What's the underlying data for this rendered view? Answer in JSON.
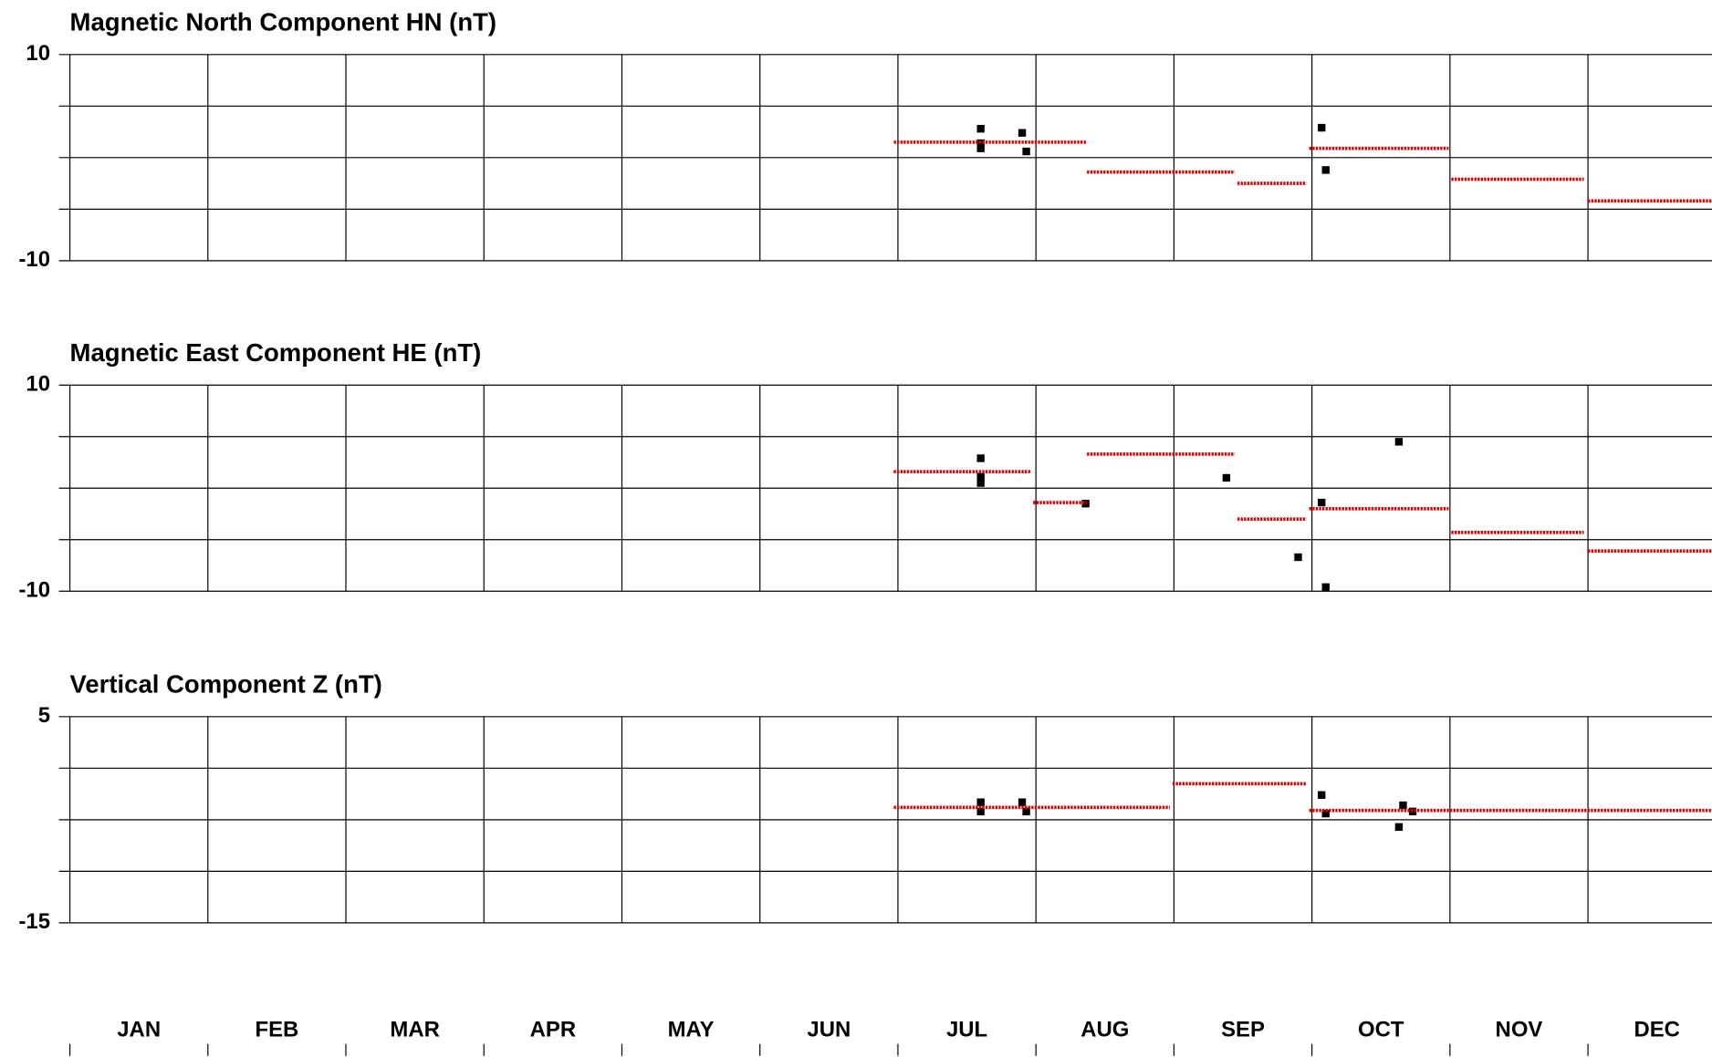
{
  "chart_data": [
    {
      "type": "scatter",
      "title": "Magnetic North Component HN (nT)",
      "xlim": [
        0,
        12
      ],
      "ylim": [
        -10,
        10
      ],
      "yticks": [
        10,
        {
          "value": 5,
          "label": null
        },
        {
          "value": 0,
          "label": null
        },
        {
          "value": -5,
          "label": null
        },
        -10
      ],
      "series": [
        {
          "color": "#000000",
          "x": [
            6.6,
            6.6,
            6.6,
            6.9,
            6.93,
            9.07,
            9.1
          ],
          "values": [
            2.8,
            1.4,
            0.9,
            2.4,
            0.6,
            2.9,
            -1.2
          ]
        },
        {
          "color": "#e00000",
          "x_start": [
            5.97,
            7.37,
            8.46,
            8.98,
            10.01,
            11.0
          ],
          "x_end": [
            7.37,
            8.44,
            8.96,
            9.99,
            10.97,
            12
          ],
          "values": [
            1.5,
            -1.4,
            -2.5,
            0.9,
            -2.1,
            -4.2
          ]
        }
      ]
    },
    {
      "type": "scatter",
      "title": "Magnetic East Component HE (nT)",
      "xlim": [
        0,
        12
      ],
      "ylim": [
        -10,
        10
      ],
      "yticks": [
        10,
        {
          "value": 5,
          "label": null
        },
        {
          "value": 0,
          "label": null
        },
        {
          "value": -5,
          "label": null
        },
        -10
      ],
      "series": [
        {
          "color": "#000000",
          "x": [
            6.6,
            6.6,
            6.6,
            7.36,
            8.38,
            8.9,
            9.07,
            9.1,
            9.63
          ],
          "values": [
            2.9,
            1.1,
            0.5,
            -1.5,
            1.0,
            -6.7,
            -1.4,
            -9.6,
            4.5
          ]
        },
        {
          "color": "#e00000",
          "x_start": [
            5.97,
            6.98,
            7.37,
            8.46,
            8.98,
            10.01,
            11.0
          ],
          "x_end": [
            6.96,
            7.37,
            8.44,
            8.96,
            9.99,
            10.97,
            12
          ],
          "values": [
            1.6,
            -1.4,
            3.3,
            -3.0,
            -2.0,
            -4.3,
            -6.1
          ]
        }
      ]
    },
    {
      "type": "scatter",
      "title": "Vertical Component Z (nT)",
      "xlim": [
        0,
        12
      ],
      "ylim": [
        -15,
        5
      ],
      "yticks": [
        5,
        {
          "value": 0,
          "label": null
        },
        {
          "value": -5,
          "label": null
        },
        {
          "value": -10,
          "label": null
        },
        -15
      ],
      "categories": [
        "JAN",
        "FEB",
        "MAR",
        "APR",
        "MAY",
        "JUN",
        "JUL",
        "AUG",
        "SEP",
        "OCT",
        "NOV",
        "DEC"
      ],
      "series": [
        {
          "color": "#000000",
          "x": [
            6.6,
            6.6,
            6.9,
            6.93,
            9.07,
            9.1,
            9.66,
            9.63,
            9.73
          ],
          "values": [
            -3.3,
            -4.2,
            -3.3,
            -4.2,
            -2.6,
            -4.4,
            -3.6,
            -5.7,
            -4.2
          ]
        },
        {
          "color": "#e00000",
          "x_start": [
            5.97,
            7.99,
            8.98
          ],
          "x_end": [
            7.97,
            8.96,
            12
          ],
          "values": [
            -3.8,
            -1.5,
            -4.1
          ]
        }
      ]
    }
  ]
}
